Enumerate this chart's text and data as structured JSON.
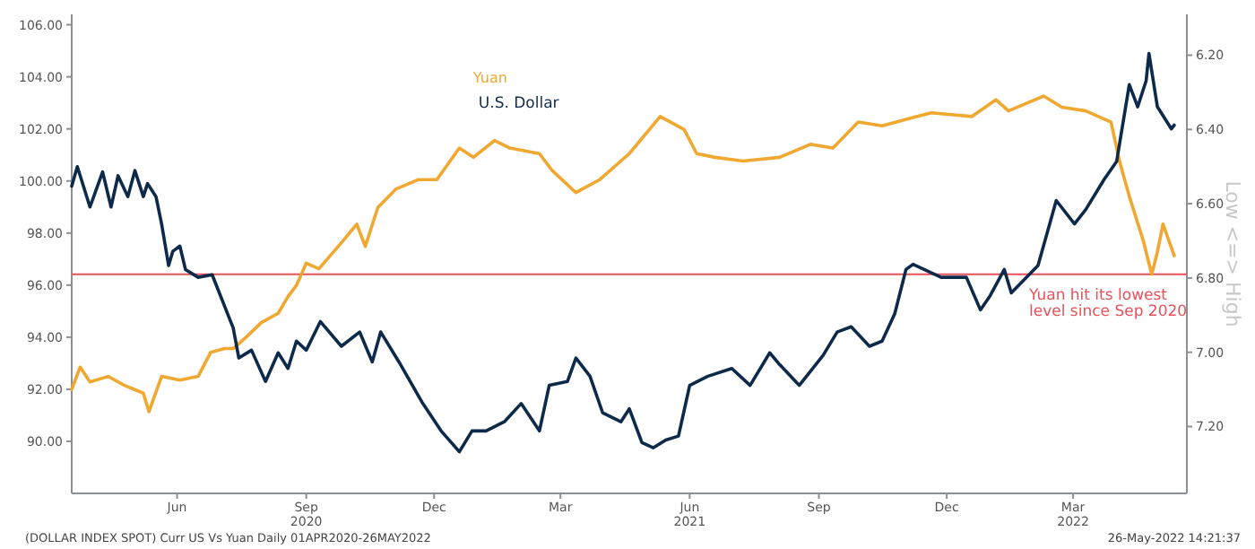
{
  "chart_data": {
    "type": "line",
    "xlim": [
      "2020-04-01",
      "2022-06-04"
    ],
    "xticks": [
      {
        "value": "2020-06-15",
        "label": "Jun"
      },
      {
        "value": "2020-09-15",
        "label": "Sep\n2020"
      },
      {
        "value": "2020-12-15",
        "label": "Dec"
      },
      {
        "value": "2021-03-15",
        "label": "Mar"
      },
      {
        "value": "2021-06-15",
        "label": "Jun\n2021"
      },
      {
        "value": "2021-09-15",
        "label": "Sep"
      },
      {
        "value": "2021-12-15",
        "label": "Dec"
      },
      {
        "value": "2022-03-15",
        "label": "Mar\n2022"
      }
    ],
    "ylim": [
      88,
      106.4
    ],
    "yticks": [
      {
        "value": 90,
        "label": "90.00"
      },
      {
        "value": 92,
        "label": "92.00"
      },
      {
        "value": 94,
        "label": "94.00"
      },
      {
        "value": 96,
        "label": "96.00"
      },
      {
        "value": 98,
        "label": "98.00"
      },
      {
        "value": 100,
        "label": "100.00"
      },
      {
        "value": 102,
        "label": "102.00"
      },
      {
        "value": 104,
        "label": "104.00"
      },
      {
        "value": 106,
        "label": "106.00"
      }
    ],
    "y2lim": [
      7.38,
      6.09
    ],
    "y2ticks": [
      {
        "value": 6.2,
        "label": "6.20"
      },
      {
        "value": 6.4,
        "label": "6.40"
      },
      {
        "value": 6.6,
        "label": "6.60"
      },
      {
        "value": 6.8,
        "label": "6.80"
      },
      {
        "value": 7.0,
        "label": "7.00"
      },
      {
        "value": 7.2,
        "label": "7.20"
      }
    ],
    "y2label": "Low <=> High",
    "legend": "top",
    "grid": false,
    "ref_lines": [
      {
        "axis": "y2",
        "value": 6.79,
        "label": "Yuan hit its lowest level since Sep 2020",
        "color": "#e8505a"
      }
    ],
    "annotations": [
      "(DOLLAR INDEX SPOT) Curr US Vs Yuan  Daily 01APR2020-26MAY2022",
      "26-May-2022 14:21:37"
    ],
    "series": [
      {
        "name": "Yuan",
        "color": "#f0a830",
        "axis": "y2",
        "x": [
          "2020-04-01",
          "2020-04-07",
          "2020-04-14",
          "2020-04-27",
          "2020-05-09",
          "2020-05-22",
          "2020-05-26",
          "2020-06-04",
          "2020-06-17",
          "2020-06-30",
          "2020-07-09",
          "2020-07-19",
          "2020-07-25",
          "2020-08-03",
          "2020-08-14",
          "2020-08-26",
          "2020-09-02",
          "2020-09-08",
          "2020-09-15",
          "2020-09-24",
          "2020-10-10",
          "2020-10-21",
          "2020-10-27",
          "2020-11-05",
          "2020-11-18",
          "2020-12-04",
          "2020-12-17",
          "2021-01-02",
          "2021-01-12",
          "2021-01-27",
          "2021-02-07",
          "2021-02-28",
          "2021-03-09",
          "2021-03-26",
          "2021-04-12",
          "2021-05-03",
          "2021-05-25",
          "2021-06-11",
          "2021-06-20",
          "2021-07-03",
          "2021-07-23",
          "2021-08-18",
          "2021-09-09",
          "2021-09-25",
          "2021-10-13",
          "2021-10-30",
          "2021-12-04",
          "2022-01-02",
          "2022-01-19",
          "2022-01-28",
          "2022-02-22",
          "2022-03-07",
          "2022-03-24",
          "2022-04-11",
          "2022-04-17",
          "2022-04-24",
          "2022-05-04",
          "2022-05-10",
          "2022-05-14",
          "2022-05-18",
          "2022-05-26"
        ],
        "values": [
          7.1,
          7.04,
          7.08,
          7.065,
          7.09,
          7.11,
          7.16,
          7.065,
          7.075,
          7.065,
          7.0,
          6.99,
          6.99,
          6.96,
          6.92,
          6.895,
          6.85,
          6.82,
          6.76,
          6.775,
          6.705,
          6.655,
          6.715,
          6.61,
          6.56,
          6.535,
          6.535,
          6.45,
          6.475,
          6.43,
          6.45,
          6.465,
          6.51,
          6.57,
          6.535,
          6.465,
          6.365,
          6.4,
          6.465,
          6.475,
          6.485,
          6.475,
          6.44,
          6.45,
          6.38,
          6.39,
          6.355,
          6.365,
          6.32,
          6.35,
          6.31,
          6.34,
          6.35,
          6.38,
          6.485,
          6.58,
          6.7,
          6.79,
          6.73,
          6.655,
          6.74
        ]
      },
      {
        "name": "U.S. Dollar",
        "color": "#0d2a4a",
        "x": [
          "2020-04-01",
          "2020-04-05",
          "2020-04-14",
          "2020-04-23",
          "2020-04-29",
          "2020-05-04",
          "2020-05-11",
          "2020-05-16",
          "2020-05-22",
          "2020-05-25",
          "2020-05-31",
          "2020-06-04",
          "2020-06-09",
          "2020-06-12",
          "2020-06-17",
          "2020-06-21",
          "2020-06-30",
          "2020-07-10",
          "2020-07-25",
          "2020-07-29",
          "2020-08-07",
          "2020-08-17",
          "2020-08-26",
          "2020-09-02",
          "2020-09-08",
          "2020-09-15",
          "2020-09-25",
          "2020-10-10",
          "2020-10-23",
          "2020-11-01",
          "2020-11-07",
          "2020-11-20",
          "2020-12-07",
          "2020-12-20",
          "2021-01-02",
          "2021-01-11",
          "2021-01-21",
          "2021-02-03",
          "2021-02-15",
          "2021-02-28",
          "2021-03-07",
          "2021-03-20",
          "2021-03-26",
          "2021-04-05",
          "2021-04-14",
          "2021-04-27",
          "2021-05-03",
          "2021-05-12",
          "2021-05-20",
          "2021-05-29",
          "2021-06-07",
          "2021-06-15",
          "2021-06-28",
          "2021-07-15",
          "2021-07-28",
          "2021-08-11",
          "2021-08-18",
          "2021-09-01",
          "2021-09-18",
          "2021-09-28",
          "2021-10-08",
          "2021-10-21",
          "2021-10-30",
          "2021-11-08",
          "2021-11-16",
          "2021-11-21",
          "2021-12-11",
          "2021-12-29",
          "2022-01-08",
          "2022-01-15",
          "2022-01-25",
          "2022-01-30",
          "2022-02-18",
          "2022-03-03",
          "2022-03-16",
          "2022-03-24",
          "2022-04-06",
          "2022-04-15",
          "2022-04-24",
          "2022-04-30",
          "2022-05-06",
          "2022-05-08",
          "2022-05-14",
          "2022-05-24",
          "2022-05-26"
        ],
        "values": [
          99.8,
          100.55,
          99.0,
          100.35,
          99.0,
          100.2,
          99.4,
          100.4,
          99.4,
          99.9,
          99.4,
          98.35,
          96.75,
          97.3,
          97.5,
          96.6,
          96.3,
          96.4,
          94.35,
          93.2,
          93.5,
          92.3,
          93.4,
          92.8,
          93.85,
          93.5,
          94.6,
          93.65,
          94.2,
          93.05,
          94.2,
          93.05,
          91.45,
          90.4,
          89.6,
          90.4,
          90.4,
          90.75,
          91.45,
          90.4,
          92.15,
          92.3,
          93.2,
          92.5,
          91.1,
          90.75,
          91.25,
          89.95,
          89.75,
          90.05,
          90.2,
          92.15,
          92.5,
          92.8,
          92.15,
          93.4,
          92.95,
          92.15,
          93.3,
          94.2,
          94.4,
          93.65,
          93.85,
          94.9,
          96.6,
          96.8,
          96.3,
          96.3,
          95.05,
          95.6,
          96.6,
          95.7,
          96.75,
          99.25,
          98.35,
          98.9,
          100.05,
          100.75,
          103.7,
          102.85,
          103.85,
          104.9,
          102.85,
          102.0,
          102.15
        ]
      }
    ]
  }
}
